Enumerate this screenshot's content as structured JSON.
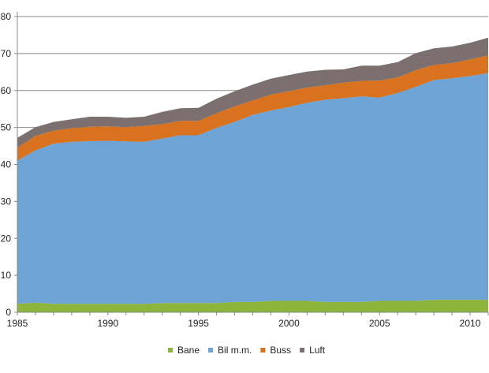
{
  "chart_data": {
    "type": "area",
    "stacked": true,
    "title": "",
    "xlabel": "",
    "ylabel": "",
    "x": [
      1985,
      1986,
      1987,
      1988,
      1989,
      1990,
      1991,
      1992,
      1993,
      1994,
      1995,
      1996,
      1997,
      1998,
      1999,
      2000,
      2001,
      2002,
      2003,
      2004,
      2005,
      2006,
      2007,
      2008,
      2009,
      2010,
      2011
    ],
    "xlim": [
      1985,
      2011
    ],
    "ylim": [
      0,
      80
    ],
    "yticks": [
      "0",
      "10",
      "20",
      "30",
      "40",
      "50",
      "60",
      "70",
      "80"
    ],
    "xticks": [
      "1985",
      "1990",
      "1995",
      "2000",
      "2005",
      "2010"
    ],
    "grid": true,
    "legend_position": "bottom",
    "series": [
      {
        "name": "Bane",
        "color": "#8db53c",
        "values": [
          2.3,
          2.6,
          2.3,
          2.3,
          2.3,
          2.3,
          2.3,
          2.3,
          2.5,
          2.5,
          2.5,
          2.5,
          2.8,
          2.8,
          3.1,
          3.1,
          3.1,
          2.8,
          2.8,
          2.8,
          3.1,
          3.1,
          3.1,
          3.4,
          3.4,
          3.4,
          3.4
        ]
      },
      {
        "name": "Bil m.m.",
        "color": "#6ea3d6",
        "values": [
          38.7,
          41.2,
          43.3,
          43.8,
          44.0,
          44.1,
          43.9,
          43.8,
          44.5,
          45.4,
          45.4,
          47.4,
          48.7,
          50.6,
          51.5,
          52.4,
          53.6,
          54.7,
          55.1,
          55.6,
          55.0,
          56.2,
          57.9,
          59.4,
          59.9,
          60.5,
          61.3
        ]
      },
      {
        "name": "Buss",
        "color": "#d8721f",
        "values": [
          3.5,
          3.9,
          3.5,
          3.7,
          3.9,
          3.9,
          3.9,
          4.3,
          3.9,
          3.9,
          3.9,
          3.9,
          4.2,
          3.9,
          4.3,
          4.3,
          4.1,
          3.9,
          4.2,
          4.2,
          4.6,
          4.2,
          4.5,
          4.1,
          4.1,
          4.5,
          4.8
        ]
      },
      {
        "name": "Luft",
        "color": "#7b706f",
        "values": [
          2.7,
          2.4,
          2.4,
          2.4,
          2.7,
          2.6,
          2.5,
          2.5,
          3.3,
          3.4,
          3.5,
          4.0,
          4.1,
          4.3,
          4.3,
          4.4,
          4.3,
          4.2,
          3.6,
          4.1,
          4.0,
          4.2,
          4.6,
          4.5,
          4.5,
          4.5,
          4.8
        ]
      }
    ]
  }
}
